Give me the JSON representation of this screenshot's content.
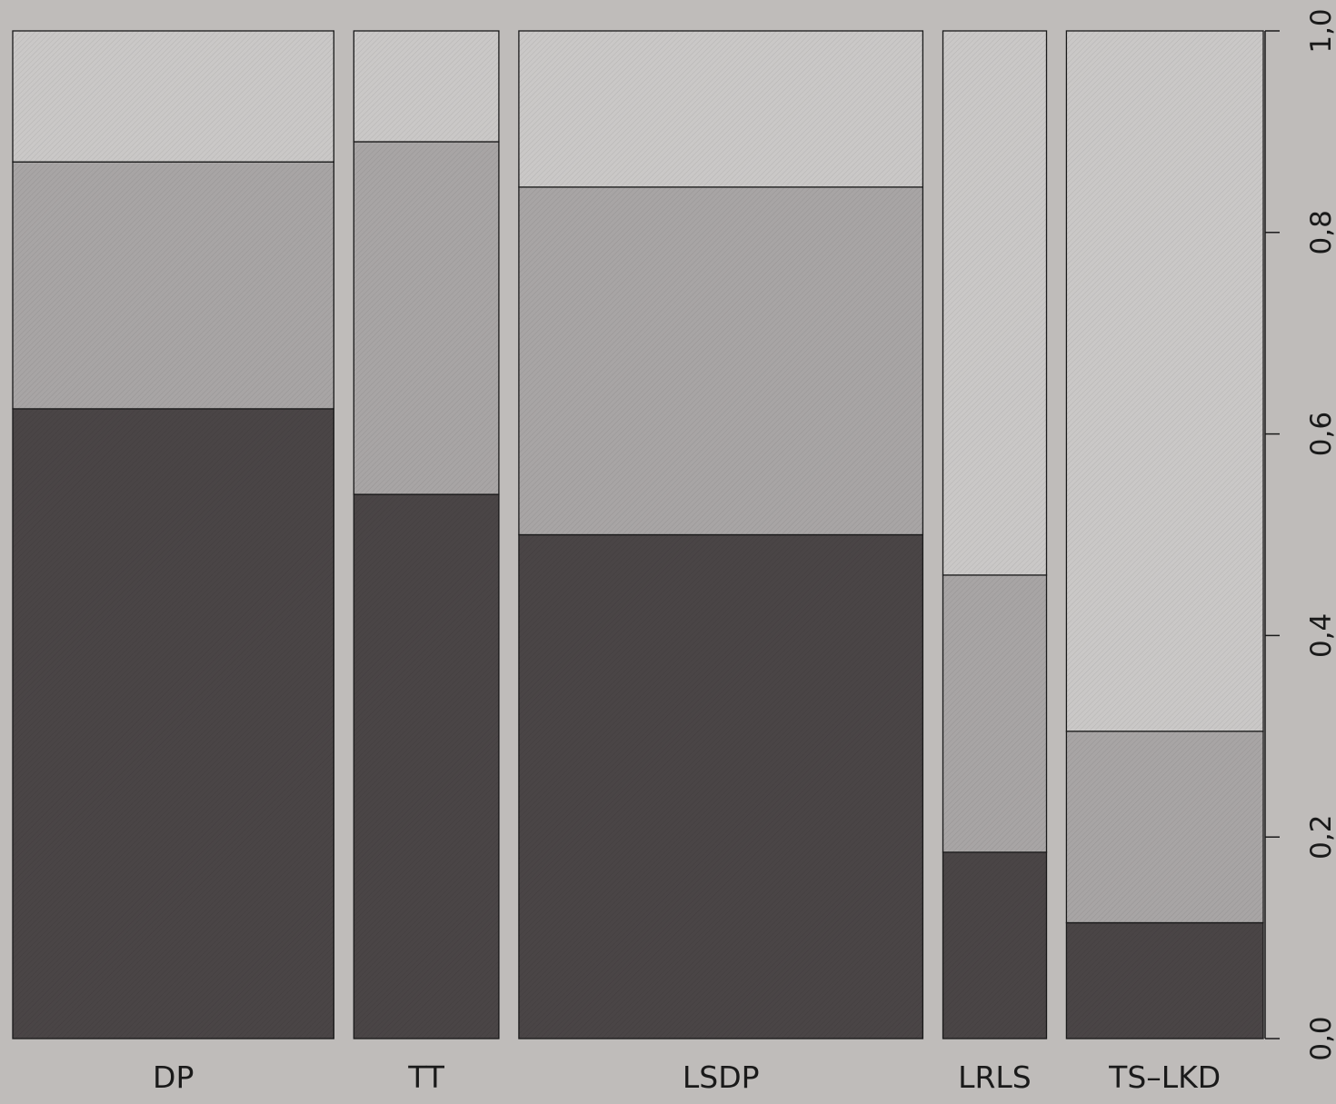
{
  "chart_data": {
    "type": "bar",
    "variant": "mosaic",
    "title": "",
    "xlabel": "",
    "ylabel": "",
    "ylim": [
      0,
      1
    ],
    "yticks": [
      "0,0",
      "0,2",
      "0,4",
      "0,6",
      "0,8",
      "1,0"
    ],
    "y_axis_side": "right",
    "grid": false,
    "categories": [
      "DP",
      "TT",
      "LSDP",
      "LRLS",
      "TS–LKD"
    ],
    "relative_widths": [
      0.31,
      0.14,
      0.39,
      0.1,
      0.19
    ],
    "series": [
      {
        "values": [
          0.625,
          0.54,
          0.5,
          0.185,
          0.115
        ]
      },
      {
        "values": [
          0.245,
          0.35,
          0.345,
          0.275,
          0.19
        ]
      },
      {
        "values": [
          0.13,
          0.11,
          0.155,
          0.54,
          0.695
        ]
      }
    ],
    "colors": [
      "#4a4546",
      "#a8a5a5",
      "#cac8c7"
    ]
  }
}
